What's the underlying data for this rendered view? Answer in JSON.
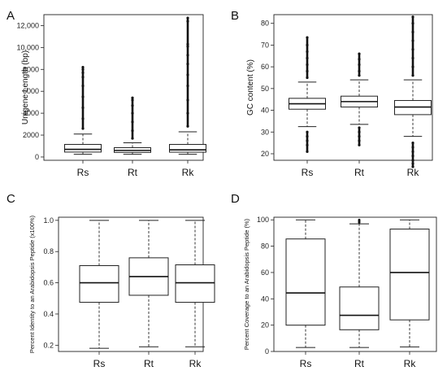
{
  "chart_data": [
    {
      "panel": "A",
      "type": "box",
      "xlabel": "",
      "ylabel": "Unigene Length (bp)",
      "categories": [
        "Rs",
        "Rt",
        "Rk"
      ],
      "ylim": [
        -300,
        13000
      ],
      "yticks": [
        0,
        2000,
        4000,
        6000,
        8000,
        10000,
        12000
      ],
      "ytick_labels": [
        "0",
        "2000",
        "4000",
        "6000",
        "8000",
        "10,000",
        "12,000"
      ],
      "boxes": [
        {
          "name": "Rs",
          "whisker_low": 250,
          "q1": 450,
          "median": 700,
          "q3": 1150,
          "whisker_high": 2100,
          "outliers": [
            2600,
            3500,
            4500,
            5500,
            6500,
            7300,
            7700,
            8000,
            8200
          ]
        },
        {
          "name": "Rt",
          "whisker_low": 250,
          "q1": 420,
          "median": 600,
          "q3": 850,
          "whisker_high": 1300,
          "outliers": [
            1700,
            2400,
            3200,
            4000,
            4700,
            5200,
            5400
          ]
        },
        {
          "name": "Rk",
          "whisker_low": 250,
          "q1": 440,
          "median": 650,
          "q3": 1150,
          "whisker_high": 2300,
          "outliers": [
            2800,
            4000,
            5200,
            6500,
            7500,
            8500,
            9300,
            10100,
            10300,
            12400,
            12700
          ]
        }
      ],
      "grid": false
    },
    {
      "panel": "B",
      "type": "box",
      "xlabel": "",
      "ylabel": "GC content (%)",
      "categories": [
        "Rs",
        "Rt",
        "Rk"
      ],
      "ylim": [
        17,
        84
      ],
      "yticks": [
        20,
        30,
        40,
        50,
        60,
        70,
        80
      ],
      "ytick_labels": [
        "20",
        "30",
        "40",
        "50",
        "60",
        "70",
        "80"
      ],
      "boxes": [
        {
          "name": "Rs",
          "whisker_low": 32.5,
          "q1": 40.5,
          "median": 43,
          "q3": 45.5,
          "whisker_high": 53,
          "outliers": [
            21,
            24,
            26,
            28,
            30,
            55,
            58,
            61,
            64,
            67,
            70,
            73.5
          ]
        },
        {
          "name": "Rt",
          "whisker_low": 33.5,
          "q1": 41.5,
          "median": 44,
          "q3": 46.5,
          "whisker_high": 54,
          "outliers": [
            24,
            26,
            28,
            30,
            32,
            56,
            58,
            61,
            63.5,
            66
          ]
        },
        {
          "name": "Rk",
          "whisker_low": 28,
          "q1": 38,
          "median": 41.5,
          "q3": 44.5,
          "whisker_high": 54,
          "outliers": [
            14,
            15.5,
            17,
            19,
            21,
            23,
            25,
            56,
            60,
            64,
            68,
            72,
            76,
            80,
            83
          ]
        }
      ],
      "grid": false
    },
    {
      "panel": "C",
      "type": "box",
      "xlabel": "",
      "ylabel": "Percent Identity to an Arabidopsis Peptide (x100%)",
      "categories": [
        "Rs",
        "Rt",
        "Rk"
      ],
      "ylim": [
        0.16,
        1.02
      ],
      "yticks": [
        0.2,
        0.4,
        0.6,
        0.8,
        1.0
      ],
      "ytick_labels": [
        "0.2",
        "0.4",
        "0.6",
        "0.8",
        "1.0"
      ],
      "boxes": [
        {
          "name": "Rs",
          "whisker_low": 0.18,
          "q1": 0.475,
          "median": 0.6,
          "q3": 0.71,
          "whisker_high": 1.0,
          "outliers": []
        },
        {
          "name": "Rt",
          "whisker_low": 0.19,
          "q1": 0.52,
          "median": 0.64,
          "q3": 0.76,
          "whisker_high": 1.0,
          "outliers": []
        },
        {
          "name": "Rk",
          "whisker_low": 0.19,
          "q1": 0.475,
          "median": 0.6,
          "q3": 0.715,
          "whisker_high": 1.0,
          "outliers": []
        }
      ],
      "grid": false
    },
    {
      "panel": "D",
      "type": "box",
      "xlabel": "",
      "ylabel": "Percent Coverage to an Arabidopsis Peptide (%)",
      "categories": [
        "Rs",
        "Rt",
        "Rk"
      ],
      "ylim": [
        0,
        102
      ],
      "yticks": [
        0,
        20,
        40,
        60,
        80,
        100
      ],
      "ytick_labels": [
        "0",
        "20",
        "40",
        "60",
        "80",
        "100"
      ],
      "boxes": [
        {
          "name": "Rs",
          "whisker_low": 3,
          "q1": 20,
          "median": 44.5,
          "q3": 85.5,
          "whisker_high": 100,
          "outliers": []
        },
        {
          "name": "Rt",
          "whisker_low": 3,
          "q1": 16.5,
          "median": 27.5,
          "q3": 49,
          "whisker_high": 97,
          "outliers": [
            98,
            99,
            100
          ]
        },
        {
          "name": "Rk",
          "whisker_low": 3.5,
          "q1": 24,
          "median": 60,
          "q3": 93,
          "whisker_high": 100,
          "outliers": []
        }
      ],
      "grid": false
    }
  ]
}
